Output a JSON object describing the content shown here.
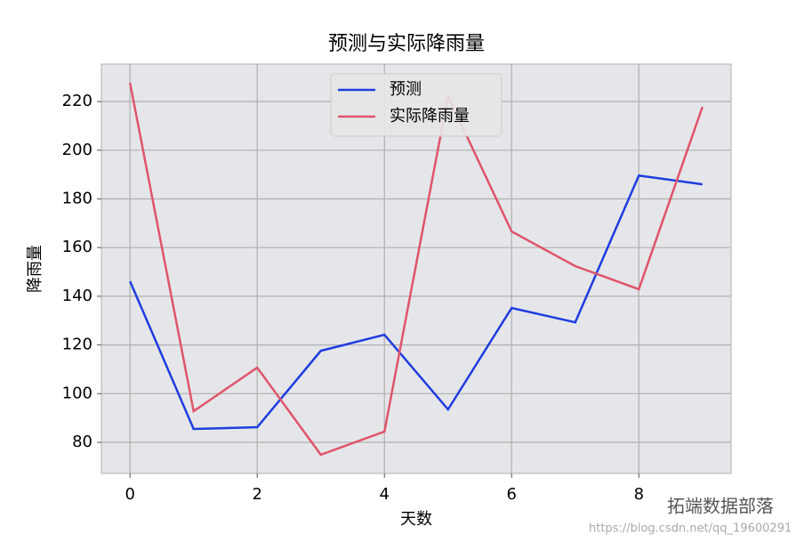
{
  "chart_data": {
    "type": "line",
    "title": "预测与实际降雨量",
    "x_label": "天数",
    "y_label": "降雨量",
    "x": [
      0,
      1,
      2,
      3,
      4,
      5,
      6,
      7,
      8,
      9
    ],
    "series": [
      {
        "name": "预测",
        "color": "#1f3de0",
        "values": [
          146.2,
          85.5,
          86.2,
          117.6,
          124.2,
          93.5,
          135.2,
          129.3,
          189.6,
          186.0
        ]
      },
      {
        "name": "实际降雨量",
        "color": "#e0546a",
        "values": [
          227.7,
          92.8,
          110.7,
          74.9,
          84.4,
          222.2,
          166.6,
          152.4,
          142.9,
          217.8
        ]
      }
    ],
    "xlim": [
      -0.45,
      9.45
    ],
    "ylim": [
      67.2,
      235.4
    ],
    "xticks": [
      0,
      2,
      4,
      6,
      8
    ],
    "yticks": [
      80,
      100,
      120,
      140,
      160,
      180,
      200,
      220
    ],
    "grid": true,
    "legend": "upper center",
    "watermark": "拓端数据部落",
    "watermark_url": "https://blog.csdn.net/qq_19600291"
  }
}
